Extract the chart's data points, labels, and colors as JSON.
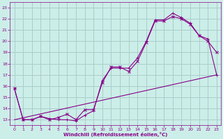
{
  "xlabel": "Windchill (Refroidissement éolien,°C)",
  "bg_color": "#cceee8",
  "grid_color": "#aacccc",
  "line_color": "#880088",
  "xlim": [
    -0.5,
    23.5
  ],
  "ylim": [
    12.5,
    23.5
  ],
  "yticks": [
    13,
    14,
    15,
    16,
    17,
    18,
    19,
    20,
    21,
    22,
    23
  ],
  "xticks": [
    0,
    1,
    2,
    3,
    4,
    5,
    6,
    7,
    8,
    9,
    10,
    11,
    12,
    13,
    14,
    15,
    16,
    17,
    18,
    19,
    20,
    21,
    22,
    23
  ],
  "series1_x": [
    0,
    1,
    2,
    3,
    4,
    5,
    6,
    7,
    8,
    9,
    10,
    11,
    12,
    13,
    14,
    15,
    16,
    17,
    18,
    19,
    20,
    21,
    22,
    23
  ],
  "series1_y": [
    15.8,
    13.0,
    13.0,
    13.3,
    13.0,
    13.2,
    13.5,
    13.0,
    13.9,
    13.9,
    16.3,
    17.7,
    17.7,
    17.3,
    18.2,
    19.9,
    21.8,
    21.8,
    22.2,
    22.0,
    21.5,
    20.5,
    20.0,
    19.0
  ],
  "series2_x": [
    0,
    1,
    2,
    3,
    4,
    5,
    6,
    7,
    8,
    9,
    10,
    11,
    12,
    13,
    14,
    15,
    16,
    17,
    18,
    19,
    20,
    21,
    22,
    23
  ],
  "series2_y": [
    15.8,
    13.0,
    13.0,
    13.3,
    13.1,
    13.0,
    13.0,
    12.9,
    13.4,
    13.8,
    16.5,
    17.6,
    17.6,
    17.6,
    18.5,
    20.0,
    21.9,
    21.9,
    22.5,
    22.1,
    21.6,
    20.5,
    20.2,
    17.0
  ],
  "series3_x": [
    0,
    23
  ],
  "series3_y": [
    13.0,
    17.0
  ]
}
